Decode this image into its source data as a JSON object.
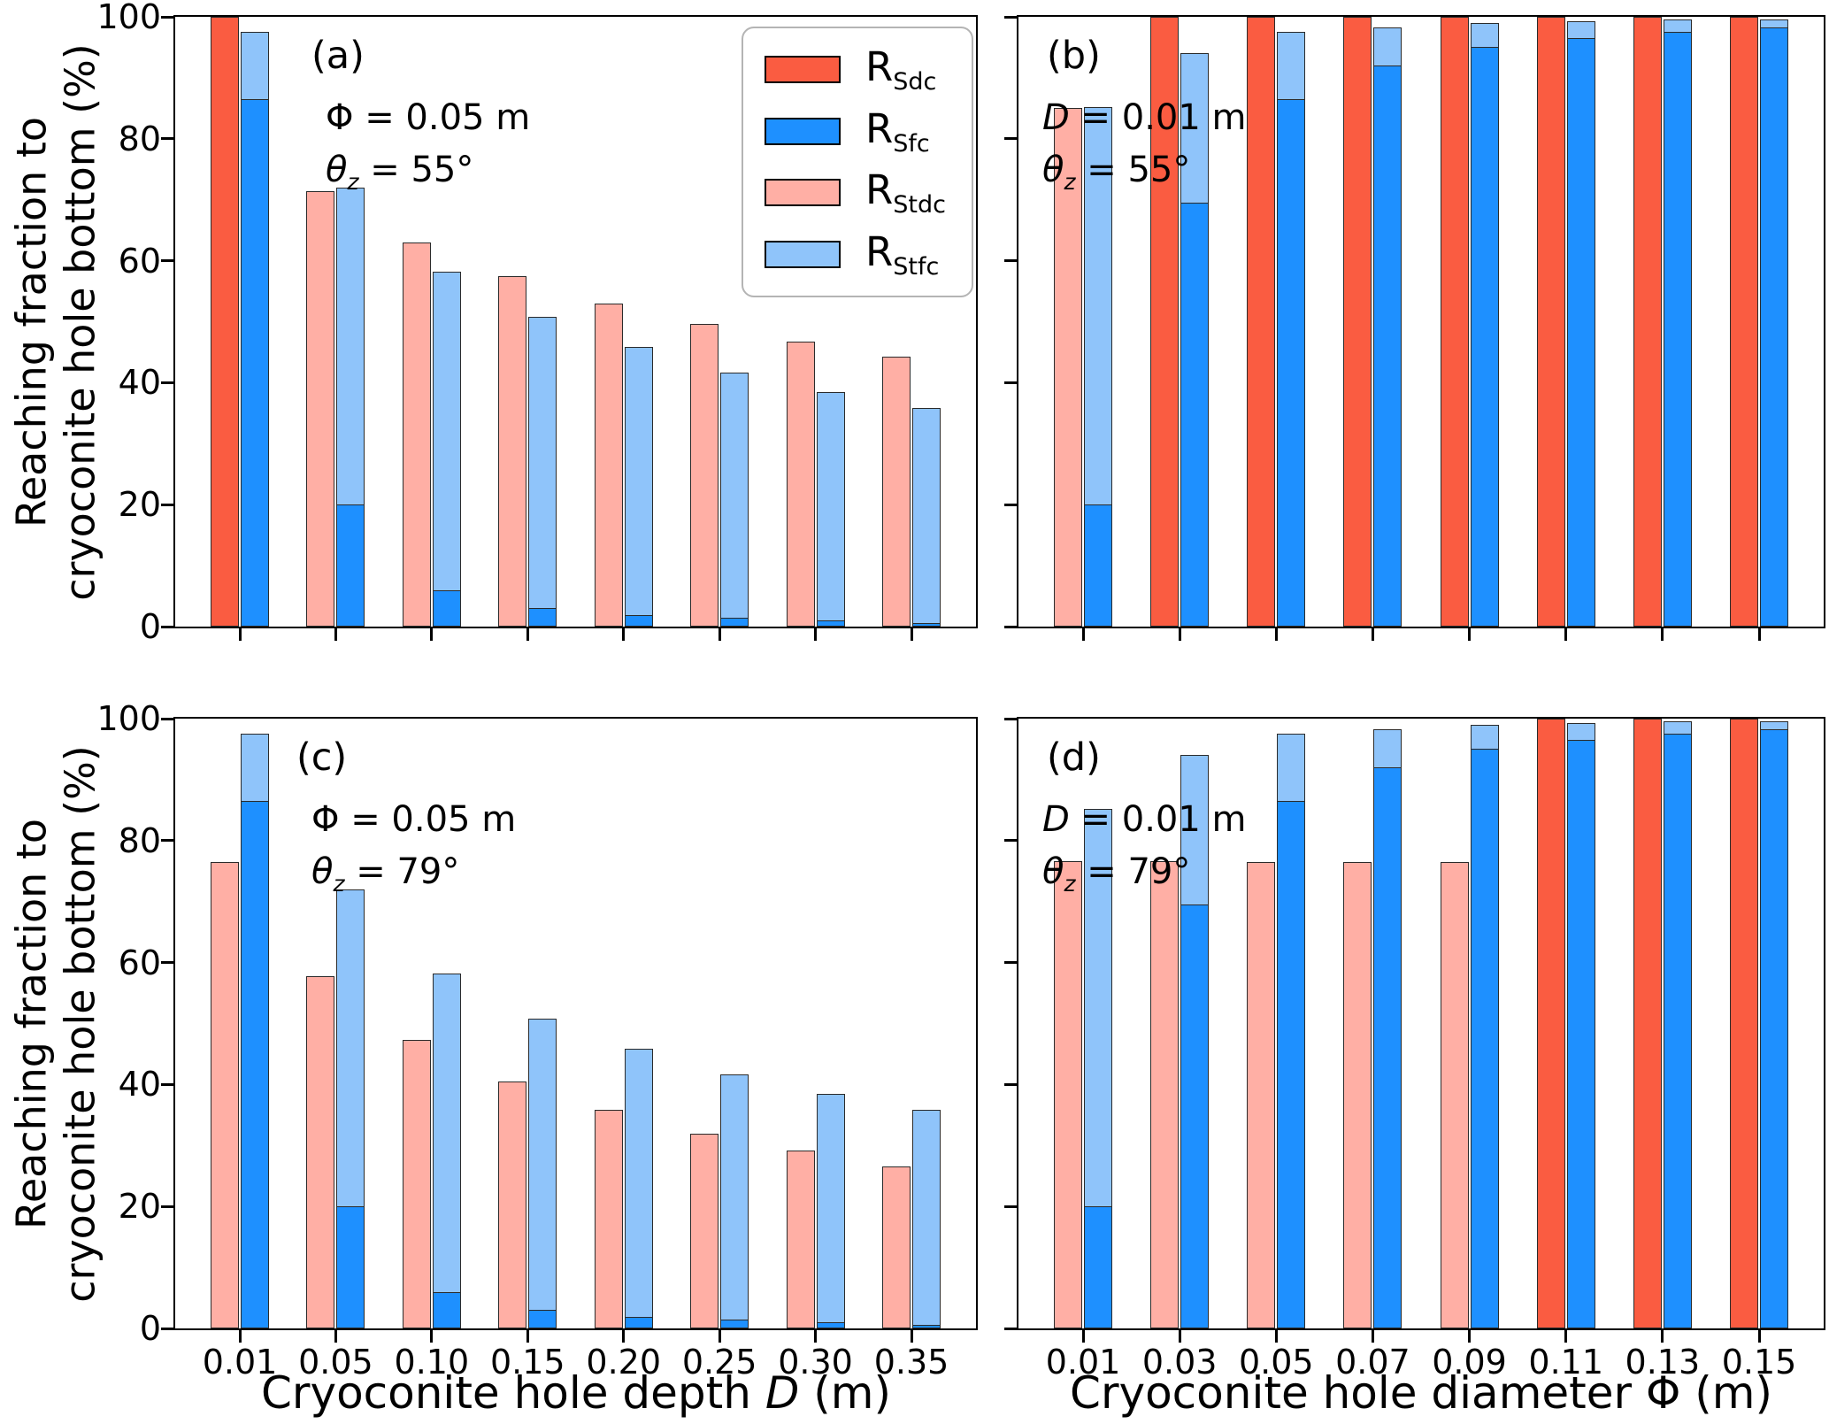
{
  "figure": {
    "ylabel_line1": "Reaching fraction to",
    "ylabel_line2": "cryoconite hole bottom (%)",
    "colors": {
      "Sdc": "#FA5C41",
      "Sfc": "#1E90FF",
      "Stdc": "#FFAFA5",
      "Stfc": "#8FC4FA",
      "bar_edge": "#2b2b2b",
      "axis": "#000000"
    },
    "legend": {
      "items": [
        {
          "base": "R",
          "sub": "Sdc",
          "series": "Sdc"
        },
        {
          "base": "R",
          "sub": "Sfc",
          "series": "Sfc"
        },
        {
          "base": "R",
          "sub": "Stdc",
          "series": "Stdc"
        },
        {
          "base": "R",
          "sub": "Stfc",
          "series": "Stfc"
        }
      ]
    },
    "xaxis_titles": [
      {
        "pre": "Cryoconite hole depth ",
        "it": "D",
        "post": " (m)"
      },
      {
        "pre": "Cryoconite hole diameter Φ (m)",
        "it": "",
        "post": ""
      }
    ]
  },
  "chart_data": {
    "type": "bar",
    "grid": false,
    "legend_position": "upper right of panel (a)",
    "ylim": [
      0,
      100
    ],
    "yticks": [
      0,
      20,
      40,
      60,
      80,
      100
    ],
    "series_names": [
      "Sdc",
      "Sfc",
      "Stdc",
      "Stfc"
    ],
    "panels": [
      {
        "id": "a",
        "row": 0,
        "col": 0,
        "label": "(a)",
        "ann1": {
          "pre": "Φ = 0.05 m",
          "it": "",
          "post": ""
        },
        "ann2": {
          "it": "θ",
          "sub": "z",
          "post": " = 55°"
        },
        "categories": [
          "0.01",
          "0.05",
          "0.10",
          "0.15",
          "0.20",
          "0.25",
          "0.30",
          "0.35"
        ],
        "series": {
          "Sdc": [
            100,
            0,
            0,
            0,
            0,
            0,
            0,
            0
          ],
          "Sfc": [
            86.5,
            20,
            6,
            3,
            1.9,
            1.4,
            1.0,
            0.6
          ],
          "Stdc": [
            null,
            71.4,
            63,
            57.5,
            53,
            49.6,
            46.7,
            44.3
          ],
          "Stfc": [
            97.5,
            72,
            58.2,
            50.8,
            45.8,
            41.7,
            38.5,
            35.9
          ]
        }
      },
      {
        "id": "b",
        "row": 0,
        "col": 1,
        "label": "(b)",
        "ann1": {
          "pre": "",
          "it": "D",
          "post": " = 0.01 m"
        },
        "ann2": {
          "it": "θ",
          "sub": "z",
          "post": " = 55°"
        },
        "categories": [
          "0.01",
          "0.03",
          "0.05",
          "0.07",
          "0.09",
          "0.11",
          "0.13",
          "0.15"
        ],
        "series": {
          "Sdc": [
            0,
            100,
            100,
            100,
            100,
            100,
            100,
            100
          ],
          "Sfc": [
            20,
            69.5,
            86.5,
            92,
            95,
            96.5,
            97.5,
            98.2
          ],
          "Stdc": [
            85,
            null,
            null,
            null,
            null,
            null,
            null,
            null
          ],
          "Stfc": [
            85.2,
            94,
            97.5,
            98.3,
            99,
            99.3,
            99.5,
            99.6
          ]
        }
      },
      {
        "id": "c",
        "row": 1,
        "col": 0,
        "label": "(c)",
        "ann1": {
          "pre": "Φ = 0.05 m",
          "it": "",
          "post": ""
        },
        "ann2": {
          "it": "θ",
          "sub": "z",
          "post": " = 79°"
        },
        "categories": [
          "0.01",
          "0.05",
          "0.10",
          "0.15",
          "0.20",
          "0.25",
          "0.30",
          "0.35"
        ],
        "series": {
          "Sdc": [
            0,
            0,
            0,
            0,
            0,
            0,
            0,
            0
          ],
          "Sfc": [
            86.5,
            20,
            6,
            3,
            1.9,
            1.4,
            1.0,
            0.6
          ],
          "Stdc": [
            76.5,
            57.8,
            47.3,
            40.5,
            35.8,
            31.9,
            29.2,
            26.5
          ],
          "Stfc": [
            97.5,
            72,
            58.2,
            50.8,
            45.8,
            41.7,
            38.5,
            35.9
          ]
        }
      },
      {
        "id": "d",
        "row": 1,
        "col": 1,
        "label": "(d)",
        "ann1": {
          "pre": "",
          "it": "D",
          "post": " = 0.01 m"
        },
        "ann2": {
          "it": "θ",
          "sub": "z",
          "post": " = 79°"
        },
        "categories": [
          "0.01",
          "0.03",
          "0.05",
          "0.07",
          "0.09",
          "0.11",
          "0.13",
          "0.15"
        ],
        "series": {
          "Sdc": [
            0,
            0,
            0,
            0,
            0,
            100,
            100,
            100
          ],
          "Sfc": [
            20,
            69.5,
            86.5,
            92,
            95,
            96.5,
            97.5,
            98.2
          ],
          "Stdc": [
            76.7,
            76.7,
            76.5,
            76.5,
            76.5,
            null,
            null,
            null
          ],
          "Stfc": [
            85.2,
            94,
            97.5,
            98.3,
            99,
            99.3,
            99.5,
            99.6
          ]
        }
      }
    ]
  }
}
